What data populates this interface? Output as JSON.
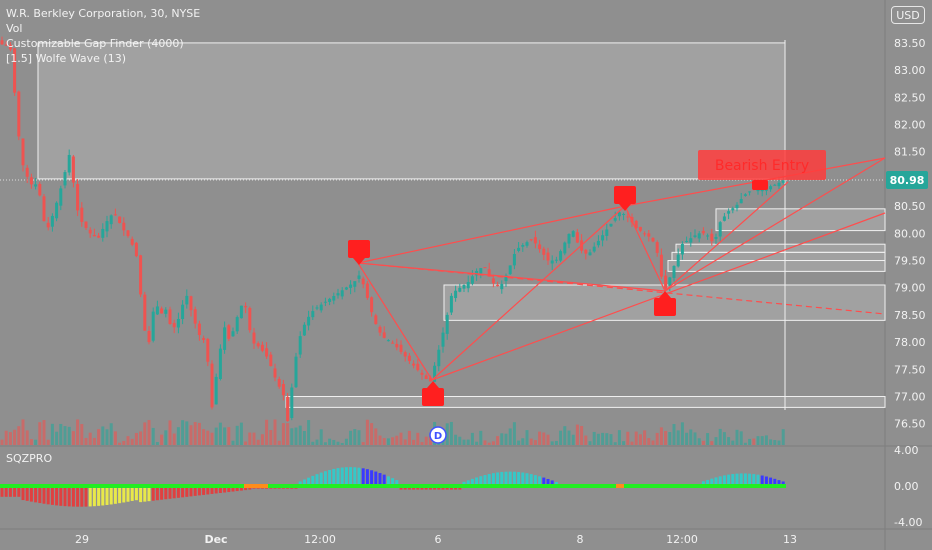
{
  "legend": {
    "symbol_line": "W.R. Berkley Corporation, 30, NYSE",
    "vol_label": "Vol",
    "gap_finder": "Customizable Gap Finder (4000)",
    "wolfe": "[1.5] Wolfe Wave (13)"
  },
  "currency_button": "USD",
  "entry_label": "Bearish Entry",
  "event_marker": "D",
  "oscillator": {
    "title": "SQZPRO",
    "ticks": [
      "4.00",
      "0.00",
      "-4.00"
    ],
    "zero": 0.0
  },
  "colors": {
    "up": "#26a69a",
    "down": "#ef5350",
    "line": "#ff4d4d",
    "last_price": "#26a69a"
  },
  "chart_data": {
    "type": "candlestick",
    "title": "W.R. Berkley Corporation, 30, NYSE",
    "ylim": [
      76.2,
      83.8
    ],
    "y_ticks": [
      "83.50",
      "83.00",
      "82.50",
      "82.00",
      "81.50",
      "81.00",
      "80.50",
      "80.00",
      "79.50",
      "79.00",
      "78.50",
      "78.00",
      "77.50",
      "77.00",
      "76.50"
    ],
    "x_ticks": [
      "29",
      "Dec",
      "12:00",
      "6",
      "8",
      "12:00",
      "13"
    ],
    "last_price": 80.98,
    "last_price_label": "80.98",
    "wolfe_points": [
      {
        "label": "1",
        "price": 79.3
      },
      {
        "label": "2",
        "price": 77.2
      },
      {
        "label": "3",
        "price": 80.4
      },
      {
        "label": "4",
        "price": 78.8
      },
      {
        "label": "5",
        "price": 80.98
      }
    ],
    "gap_zones": [
      [
        76.8,
        77.0
      ],
      [
        78.4,
        79.05
      ],
      [
        79.3,
        79.5
      ],
      [
        79.5,
        79.65
      ],
      [
        79.65,
        79.8
      ],
      [
        80.05,
        80.45
      ],
      [
        81.0,
        83.5
      ]
    ]
  }
}
